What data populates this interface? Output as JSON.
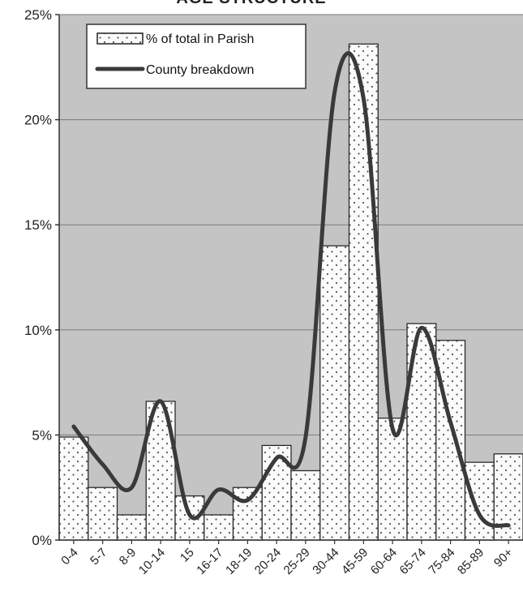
{
  "chart_data": {
    "type": "bar",
    "title": "AGE STRUCTURE",
    "categories": [
      "0-4",
      "5-7",
      "8-9",
      "10-14",
      "15",
      "16-17",
      "18-19",
      "20-24",
      "25-29",
      "30-44",
      "45-59",
      "60-64",
      "65-74",
      "75-84",
      "85-89",
      "90+"
    ],
    "series": [
      {
        "name": "% of total in Parish",
        "kind": "bar",
        "values": [
          4.9,
          2.5,
          1.2,
          6.6,
          2.1,
          1.2,
          2.5,
          4.5,
          3.3,
          14.0,
          23.6,
          5.8,
          10.3,
          9.5,
          3.7,
          4.1
        ]
      },
      {
        "name": "County breakdown",
        "kind": "line",
        "values": [
          5.4,
          3.6,
          2.5,
          6.6,
          1.2,
          2.4,
          1.9,
          3.9,
          4.9,
          21.3,
          21.0,
          5.3,
          10.1,
          5.6,
          1.2,
          0.7
        ]
      }
    ],
    "yticks": [
      "0%",
      "5%",
      "10%",
      "15%",
      "20%",
      "25%"
    ],
    "ylim": [
      0,
      25
    ],
    "grid": true,
    "legend": "top-left",
    "colors": {
      "plot_background": "#c4c4c4",
      "bar_fill": "#fbfbfb",
      "bar_dots": "#555555",
      "line": "#3a3a3a",
      "grid": "#7a7a7a",
      "axis": "#333333"
    }
  }
}
